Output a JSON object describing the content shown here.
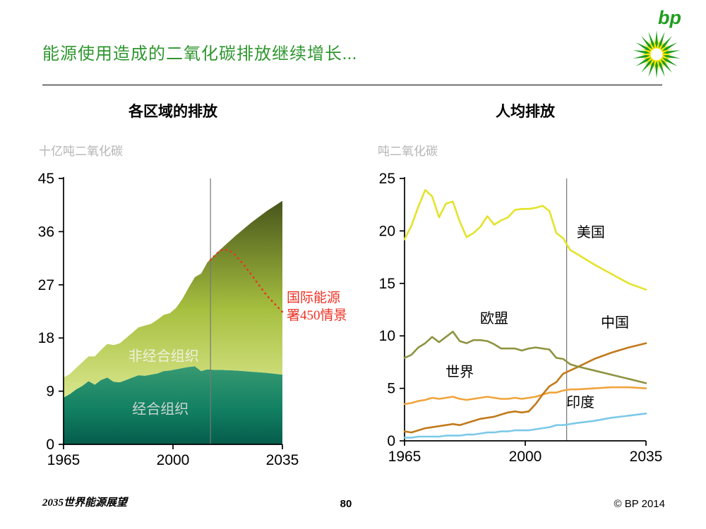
{
  "slide": {
    "title": "能源使用造成的二氧化碳排放继续增长...",
    "logo_text": "bp",
    "footer_left": "2035世界能源展望",
    "page_number": "80",
    "footer_right": "© BP 2014"
  },
  "colors": {
    "title_green": "#2f962f",
    "helios_green": "#1f9e1f",
    "helios_yellow": "#ffe600",
    "marker_line": "#777777",
    "scenario_red": "#ee3124"
  },
  "chart_data": [
    {
      "type": "area",
      "title": "各区域的排放",
      "unit_label": "十亿吨二氧化碳",
      "xlim": [
        1965,
        2035
      ],
      "ylim": [
        0,
        45
      ],
      "yticks": [
        0,
        9,
        18,
        27,
        36,
        45
      ],
      "xticks": [
        1965,
        2000,
        2035
      ],
      "marker_year": 2012,
      "grid": false,
      "x": [
        1965,
        1967,
        1969,
        1971,
        1973,
        1975,
        1977,
        1979,
        1981,
        1983,
        1985,
        1987,
        1989,
        1991,
        1993,
        1995,
        1997,
        1999,
        2001,
        2003,
        2005,
        2007,
        2009,
        2011,
        2013,
        2015,
        2020,
        2025,
        2030,
        2035
      ],
      "series": [
        {
          "name": "经合组织",
          "values": [
            7.9,
            8.5,
            9.3,
            9.9,
            10.7,
            10.1,
            10.9,
            11.3,
            10.6,
            10.5,
            10.9,
            11.3,
            11.7,
            11.6,
            11.8,
            12.0,
            12.4,
            12.5,
            12.7,
            12.9,
            13.1,
            13.2,
            12.4,
            12.7,
            12.6,
            12.6,
            12.5,
            12.3,
            12.1,
            11.8
          ],
          "color_top": "#379a72",
          "color_mid": "#128062",
          "color_bottom": "#055c4b"
        },
        {
          "name": "非经合组织",
          "values": [
            3.4,
            3.4,
            3.6,
            4.0,
            4.2,
            4.8,
            5.1,
            5.7,
            6.2,
            6.6,
            7.1,
            7.6,
            8.1,
            8.5,
            8.6,
            9.1,
            9.5,
            9.7,
            10.4,
            11.7,
            13.4,
            15.1,
            16.5,
            18.1,
            19.3,
            20.3,
            22.8,
            25.2,
            27.4,
            29.4
          ],
          "color_top": "#47551b",
          "color_mid": "#a6bf3f",
          "color_bottom": "#d9e68c"
        }
      ],
      "scenario": {
        "name": "国际能源署450情景",
        "label_line1": "国际能源",
        "label_line2": "署450情景",
        "color": "#ee3124",
        "x": [
          2012,
          2014,
          2016,
          2018,
          2020,
          2022,
          2025,
          2028,
          2030,
          2035
        ],
        "values": [
          31.2,
          32.3,
          33.0,
          32.8,
          32.0,
          30.8,
          28.8,
          26.6,
          25.2,
          22.4
        ]
      },
      "labels": [
        {
          "text": "非经合组织",
          "year": 1997,
          "value": 15.0,
          "color": "#eef0dc"
        },
        {
          "text": "经合组织",
          "year": 1996,
          "value": 6.0,
          "color": "#ccd6d0"
        }
      ]
    },
    {
      "type": "line",
      "title": "人均排放",
      "unit_label": "吨二氧化碳",
      "xlim": [
        1965,
        2035
      ],
      "ylim": [
        0,
        25
      ],
      "yticks": [
        0,
        5,
        10,
        15,
        20,
        25
      ],
      "xticks": [
        1965,
        2000,
        2035
      ],
      "marker_year": 2012,
      "grid": false,
      "x": [
        1965,
        1967,
        1969,
        1971,
        1973,
        1975,
        1977,
        1979,
        1981,
        1983,
        1985,
        1987,
        1989,
        1991,
        1993,
        1995,
        1997,
        1999,
        2001,
        2003,
        2005,
        2007,
        2009,
        2011,
        2013,
        2015,
        2020,
        2025,
        2030,
        2035
      ],
      "series": [
        {
          "name": "印度",
          "color": "#7cc9e8",
          "values": [
            0.3,
            0.3,
            0.4,
            0.4,
            0.4,
            0.4,
            0.5,
            0.5,
            0.5,
            0.6,
            0.6,
            0.7,
            0.8,
            0.8,
            0.9,
            0.9,
            1.0,
            1.0,
            1.0,
            1.1,
            1.2,
            1.3,
            1.5,
            1.5,
            1.6,
            1.7,
            1.9,
            2.2,
            2.4,
            2.6
          ]
        },
        {
          "name": "世界",
          "color": "#f0a43c",
          "values": [
            3.5,
            3.6,
            3.8,
            3.9,
            4.1,
            4.0,
            4.1,
            4.2,
            4.0,
            3.9,
            4.0,
            4.1,
            4.2,
            4.1,
            4.0,
            4.0,
            4.1,
            4.0,
            4.1,
            4.2,
            4.4,
            4.6,
            4.6,
            4.8,
            4.9,
            4.9,
            5.0,
            5.1,
            5.1,
            5.0
          ]
        },
        {
          "name": "中国",
          "color": "#c17a1b",
          "values": [
            0.9,
            0.8,
            1.0,
            1.2,
            1.3,
            1.4,
            1.5,
            1.6,
            1.5,
            1.7,
            1.9,
            2.1,
            2.2,
            2.3,
            2.5,
            2.7,
            2.8,
            2.7,
            2.8,
            3.5,
            4.4,
            5.2,
            5.6,
            6.4,
            6.7,
            7.0,
            7.8,
            8.4,
            8.9,
            9.3
          ]
        },
        {
          "name": "欧盟",
          "color": "#8e9340",
          "values": [
            7.9,
            8.2,
            8.9,
            9.3,
            9.9,
            9.4,
            9.9,
            10.4,
            9.5,
            9.3,
            9.6,
            9.6,
            9.5,
            9.2,
            8.8,
            8.8,
            8.8,
            8.6,
            8.8,
            8.9,
            8.8,
            8.7,
            7.9,
            7.8,
            7.3,
            7.1,
            6.7,
            6.3,
            5.9,
            5.5
          ]
        },
        {
          "name": "美国",
          "color": "#e3e32c",
          "values": [
            19.2,
            20.5,
            22.3,
            23.9,
            23.3,
            21.3,
            22.6,
            22.8,
            20.9,
            19.4,
            19.8,
            20.4,
            21.4,
            20.6,
            21.0,
            21.3,
            22.0,
            22.1,
            22.1,
            22.2,
            22.4,
            21.9,
            19.8,
            19.3,
            18.2,
            17.8,
            16.8,
            15.9,
            15.0,
            14.4
          ]
        }
      ],
      "labels": [
        {
          "text": "美国",
          "year": 2019,
          "value": 19.9,
          "color": "#000000"
        },
        {
          "text": "欧盟",
          "year": 1991,
          "value": 11.7,
          "color": "#000000"
        },
        {
          "text": "中国",
          "year": 2026,
          "value": 11.3,
          "color": "#000000"
        },
        {
          "text": "世界",
          "year": 1981,
          "value": 6.6,
          "color": "#000000"
        },
        {
          "text": "印度",
          "year": 2016,
          "value": 3.7,
          "color": "#000000"
        }
      ]
    }
  ]
}
